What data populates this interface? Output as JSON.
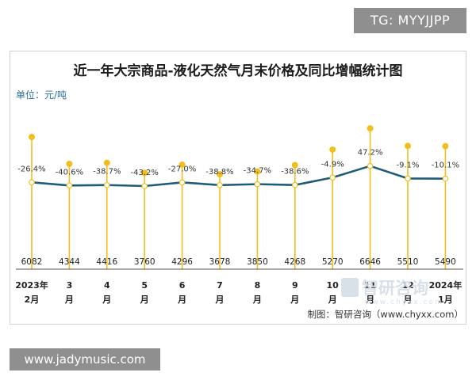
{
  "watermarks": {
    "top": "TG: MYYJJPP",
    "bottom": "www.jadymusic.com"
  },
  "chart_data": {
    "type": "line+lollipop",
    "title": "近一年大宗商品-液化天然气月末价格及同比增幅统计图",
    "unit": "单位：元/吨",
    "categories": [
      [
        "2023年",
        "2月"
      ],
      [
        "3",
        "月"
      ],
      [
        "4",
        "月"
      ],
      [
        "5",
        "月"
      ],
      [
        "6",
        "月"
      ],
      [
        "7",
        "月"
      ],
      [
        "8",
        "月"
      ],
      [
        "9",
        "月"
      ],
      [
        "10",
        "月"
      ],
      [
        "11",
        "月"
      ],
      [
        "12",
        "月"
      ],
      [
        "2024年",
        "1月"
      ]
    ],
    "series": [
      {
        "name": "",
        "kind": "lollipop",
        "color": "#f2be1e",
        "values": [
          6082,
          4344,
          4416,
          3760,
          4296,
          3678,
          3850,
          4268,
          5270,
          6646,
          5510,
          5490
        ]
      },
      {
        "name": "",
        "kind": "line",
        "color": "#1f5c7a",
        "values": [
          -26.4,
          -40.6,
          -38.7,
          -43.2,
          -27.0,
          -38.8,
          -34.7,
          -38.6,
          -4.9,
          47.2,
          -9.1,
          -10.1
        ],
        "labels": [
          "-26.4%",
          "-40.6%",
          "-38.7%",
          "-43.2%",
          "-27.0%",
          "-38.8%",
          "-34.7%",
          "-38.6%",
          "-4.9%",
          "47.2%",
          "-9.1%",
          "-10.1%"
        ]
      }
    ],
    "source": "制图：智研咨询（www.chyxx.com）",
    "logo": {
      "text": "智研咨询",
      "url": "www.chyxx.com"
    }
  }
}
